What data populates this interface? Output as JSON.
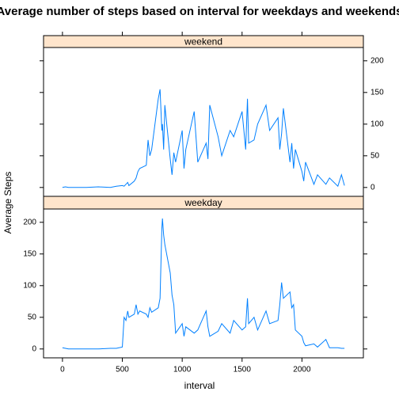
{
  "chart_data": {
    "type": "line",
    "title": "Average number of steps based on interval for weekdays and weekends",
    "xlabel": "interval",
    "ylabel": "Average Steps",
    "x": [
      0,
      25,
      50,
      100,
      200,
      300,
      400,
      450,
      500,
      515,
      530,
      545,
      555,
      600,
      615,
      630,
      645,
      700,
      715,
      730,
      745,
      800,
      815,
      830,
      835,
      845,
      855,
      900,
      915,
      930,
      945,
      1000,
      1015,
      1030,
      1100,
      1130,
      1200,
      1215,
      1230,
      1300,
      1330,
      1400,
      1430,
      1500,
      1530,
      1545,
      1555,
      1600,
      1630,
      1700,
      1730,
      1800,
      1815,
      1830,
      1845,
      1900,
      1915,
      1930,
      1945,
      2000,
      2015,
      2030,
      2100,
      2130,
      2200,
      2230,
      2300,
      2330,
      2355
    ],
    "series": [
      {
        "name": "weekend",
        "color": "#0080ff",
        "values": [
          0,
          1,
          0,
          0,
          0,
          1,
          0,
          2,
          3,
          2,
          5,
          8,
          3,
          10,
          15,
          25,
          30,
          35,
          75,
          50,
          60,
          140,
          155,
          90,
          100,
          60,
          130,
          45,
          20,
          55,
          40,
          90,
          30,
          60,
          120,
          40,
          70,
          45,
          130,
          80,
          50,
          90,
          80,
          120,
          60,
          140,
          70,
          75,
          100,
          130,
          90,
          110,
          60,
          85,
          125,
          40,
          70,
          30,
          60,
          25,
          10,
          40,
          5,
          20,
          5,
          15,
          2,
          20,
          3
        ]
      },
      {
        "name": "weekday",
        "color": "#0080ff",
        "values": [
          2,
          1,
          0,
          0,
          0,
          0,
          1,
          1,
          3,
          50,
          45,
          60,
          50,
          55,
          70,
          55,
          60,
          55,
          50,
          65,
          58,
          65,
          80,
          190,
          206,
          180,
          165,
          120,
          85,
          70,
          25,
          40,
          20,
          35,
          25,
          30,
          60,
          35,
          20,
          28,
          40,
          25,
          45,
          30,
          35,
          80,
          40,
          50,
          30,
          60,
          40,
          45,
          70,
          105,
          80,
          90,
          65,
          70,
          30,
          20,
          10,
          5,
          8,
          3,
          15,
          2,
          2,
          1,
          1
        ]
      }
    ],
    "xlim": [
      -158,
      2513
    ],
    "ylim": [
      -14,
      221
    ],
    "xticks": [
      0,
      500,
      1000,
      1500,
      2000
    ],
    "yticks": [
      0,
      50,
      100,
      150,
      200
    ],
    "strip_color": "#ffe5cc"
  }
}
